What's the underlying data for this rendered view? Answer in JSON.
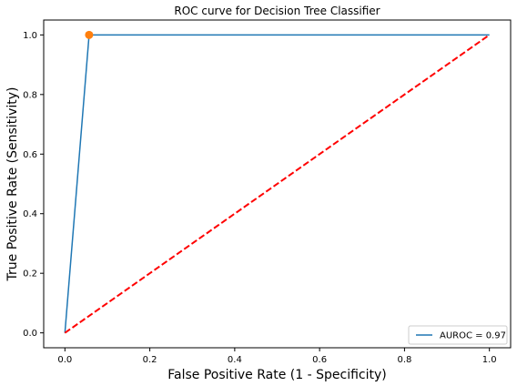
{
  "chart_data": {
    "type": "line",
    "title": "ROC curve for Decision Tree Classifier",
    "xlabel": "False Positive Rate (1 - Specificity)",
    "ylabel": "True Positive Rate (Sensitivity)",
    "xlim": [
      -0.05,
      1.05
    ],
    "ylim": [
      -0.05,
      1.05
    ],
    "xticks": [
      0.0,
      0.2,
      0.4,
      0.6,
      0.8,
      1.0
    ],
    "yticks": [
      0.0,
      0.2,
      0.4,
      0.6,
      0.8,
      1.0
    ],
    "xtick_labels": [
      "0.0",
      "0.2",
      "0.4",
      "0.6",
      "0.8",
      "1.0"
    ],
    "ytick_labels": [
      "0.0",
      "0.2",
      "0.4",
      "0.6",
      "0.8",
      "1.0"
    ],
    "grid": false,
    "legend_position": "bottom-right",
    "series": [
      {
        "name": "AUROC = 0.97",
        "x": [
          0.0,
          0.057,
          1.0
        ],
        "y": [
          0.0,
          1.0,
          1.0
        ],
        "color": "#1f77b4",
        "style": "solid"
      },
      {
        "x": [
          0.0,
          1.0
        ],
        "y": [
          0.0,
          1.0
        ],
        "color": "#ff0000",
        "style": "dashed"
      }
    ],
    "highlight_point": {
      "x": 0.057,
      "y": 1.0,
      "color": "#ff7f0e"
    }
  }
}
